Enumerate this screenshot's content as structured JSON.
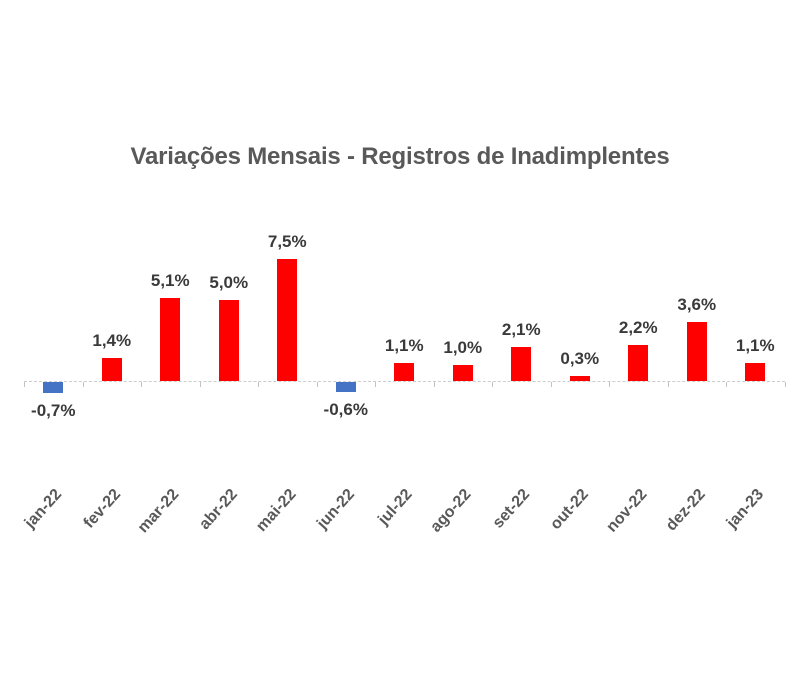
{
  "chart_data": {
    "type": "bar",
    "title": "Variações Mensais - Registros de Inadimplentes",
    "categories": [
      "jan-22",
      "fev-22",
      "mar-22",
      "abr-22",
      "mai-22",
      "jun-22",
      "jul-22",
      "ago-22",
      "set-22",
      "out-22",
      "nov-22",
      "dez-22",
      "jan-23"
    ],
    "values": [
      -0.7,
      1.4,
      5.1,
      5.0,
      7.5,
      -0.6,
      1.1,
      1.0,
      2.1,
      0.3,
      2.2,
      3.6,
      1.1
    ],
    "value_labels": [
      "-0,7%",
      "1,4%",
      "5,1%",
      "5,0%",
      "7,5%",
      "-0,6%",
      "1,1%",
      "1,0%",
      "2,1%",
      "0,3%",
      "2,2%",
      "3,6%",
      "1,1%"
    ],
    "xlabel": "",
    "ylabel": "",
    "ylim": [
      -1.5,
      8.5
    ],
    "grid": false,
    "legend": false,
    "colors": {
      "positive": "#ff0000",
      "negative": "#4472c4",
      "axis": "#cdcdcd",
      "tick": "#c2c2c2",
      "data_label": "#3a3a3a",
      "tick_label": "#595959",
      "title": "#595959"
    }
  }
}
